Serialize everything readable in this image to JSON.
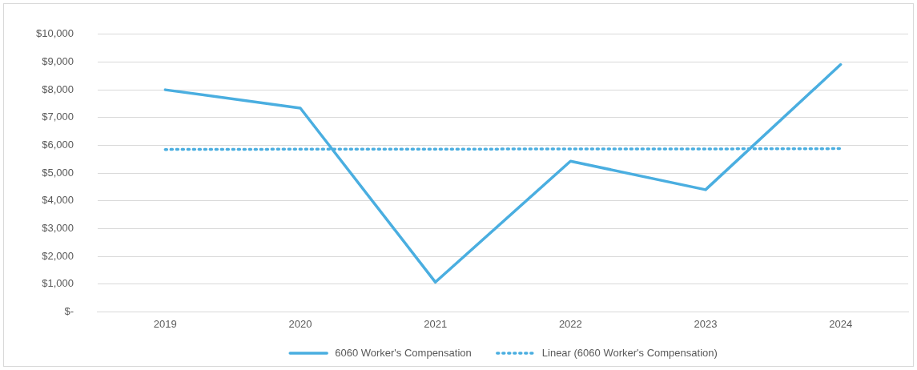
{
  "chart_data": {
    "type": "line",
    "categories": [
      "2019",
      "2020",
      "2021",
      "2022",
      "2023",
      "2024"
    ],
    "series": [
      {
        "name": "6060 Worker's Compensation",
        "color": "#4aaee0",
        "values": [
          8000,
          7340,
          1070,
          5430,
          4400,
          8910
        ],
        "line_style": "solid"
      },
      {
        "name": "Linear (6060 Worker's Compensation)",
        "color": "#4aaee0",
        "values": [
          5850,
          5860,
          5860,
          5870,
          5870,
          5880
        ],
        "line_style": "dotted"
      }
    ],
    "ylim": [
      0,
      10000
    ],
    "yticks": [
      {
        "value": 0,
        "label": "$-"
      },
      {
        "value": 1000,
        "label": "$1,000"
      },
      {
        "value": 2000,
        "label": "$2,000"
      },
      {
        "value": 3000,
        "label": "$3,000"
      },
      {
        "value": 4000,
        "label": "$4,000"
      },
      {
        "value": 5000,
        "label": "$5,000"
      },
      {
        "value": 6000,
        "label": "$6,000"
      },
      {
        "value": 7000,
        "label": "$7,000"
      },
      {
        "value": 8000,
        "label": "$8,000"
      },
      {
        "value": 9000,
        "label": "$9,000"
      },
      {
        "value": 10000,
        "label": "$10,000"
      }
    ],
    "grid": "y",
    "legend": "bottom",
    "marker": "none"
  }
}
